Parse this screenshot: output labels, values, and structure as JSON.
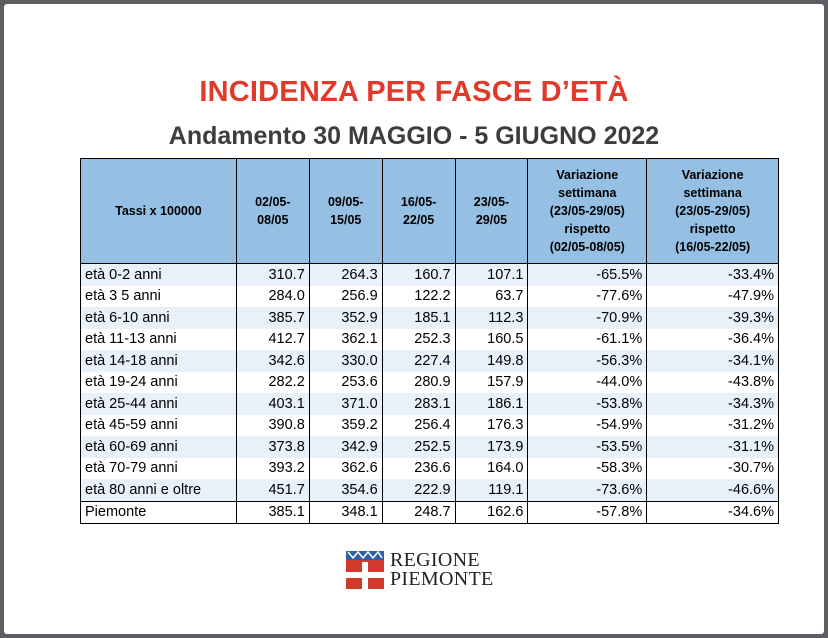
{
  "title": "INCIDENZA PER FASCE D’ETÀ",
  "subtitle": "Andamento 30 MAGGIO - 5 GIUGNO 2022",
  "table": {
    "headers": [
      "Tassi x 100000",
      "02/05-\n08/05",
      "09/05-\n15/05",
      "16/05-\n22/05",
      "23/05-\n29/05",
      "Variazione\nsettimana\n(23/05-29/05)\nrispetto\n(02/05-08/05)",
      "Variazione\nsettimana\n(23/05-29/05)\nrispetto\n(16/05-22/05)"
    ],
    "rows": [
      [
        "età 0-2 anni",
        "310.7",
        "264.3",
        "160.7",
        "107.1",
        "-65.5%",
        "-33.4%"
      ],
      [
        "età 3 5 anni",
        "284.0",
        "256.9",
        "122.2",
        "63.7",
        "-77.6%",
        "-47.9%"
      ],
      [
        "età 6-10 anni",
        "385.7",
        "352.9",
        "185.1",
        "112.3",
        "-70.9%",
        "-39.3%"
      ],
      [
        "età 11-13 anni",
        "412.7",
        "362.1",
        "252.3",
        "160.5",
        "-61.1%",
        "-36.4%"
      ],
      [
        "età 14-18 anni",
        "342.6",
        "330.0",
        "227.4",
        "149.8",
        "-56.3%",
        "-34.1%"
      ],
      [
        "età 19-24 anni",
        "282.2",
        "253.6",
        "280.9",
        "157.9",
        "-44.0%",
        "-43.8%"
      ],
      [
        "età 25-44 anni",
        "403.1",
        "371.0",
        "283.1",
        "186.1",
        "-53.8%",
        "-34.3%"
      ],
      [
        "età 45-59 anni",
        "390.8",
        "359.2",
        "256.4",
        "176.3",
        "-54.9%",
        "-31.2%"
      ],
      [
        "età 60-69 anni",
        "373.8",
        "342.9",
        "252.5",
        "173.9",
        "-53.5%",
        "-31.1%"
      ],
      [
        "età 70-79 anni",
        "393.2",
        "362.6",
        "236.6",
        "164.0",
        "-58.3%",
        "-30.7%"
      ],
      [
        "età 80 anni e oltre",
        "451.7",
        "354.6",
        "222.9",
        "119.1",
        "-73.6%",
        "-46.6%"
      ]
    ],
    "total": [
      "Piemonte",
      "385.1",
      "348.1",
      "248.7",
      "162.6",
      "-57.8%",
      "-34.6%"
    ]
  },
  "logo": {
    "line1": "REGIONE",
    "line2": "PIEMONTE",
    "colors": {
      "red": "#d23a2e",
      "white": "#ffffff",
      "blue": "#2f5fa8"
    }
  },
  "colors": {
    "title": "#e23a2a",
    "subtitle": "#3d3d3d",
    "header_bg": "#95c0e3",
    "row_alt_bg": "#e8f0f9",
    "frame_bg": "#5c5e62"
  }
}
